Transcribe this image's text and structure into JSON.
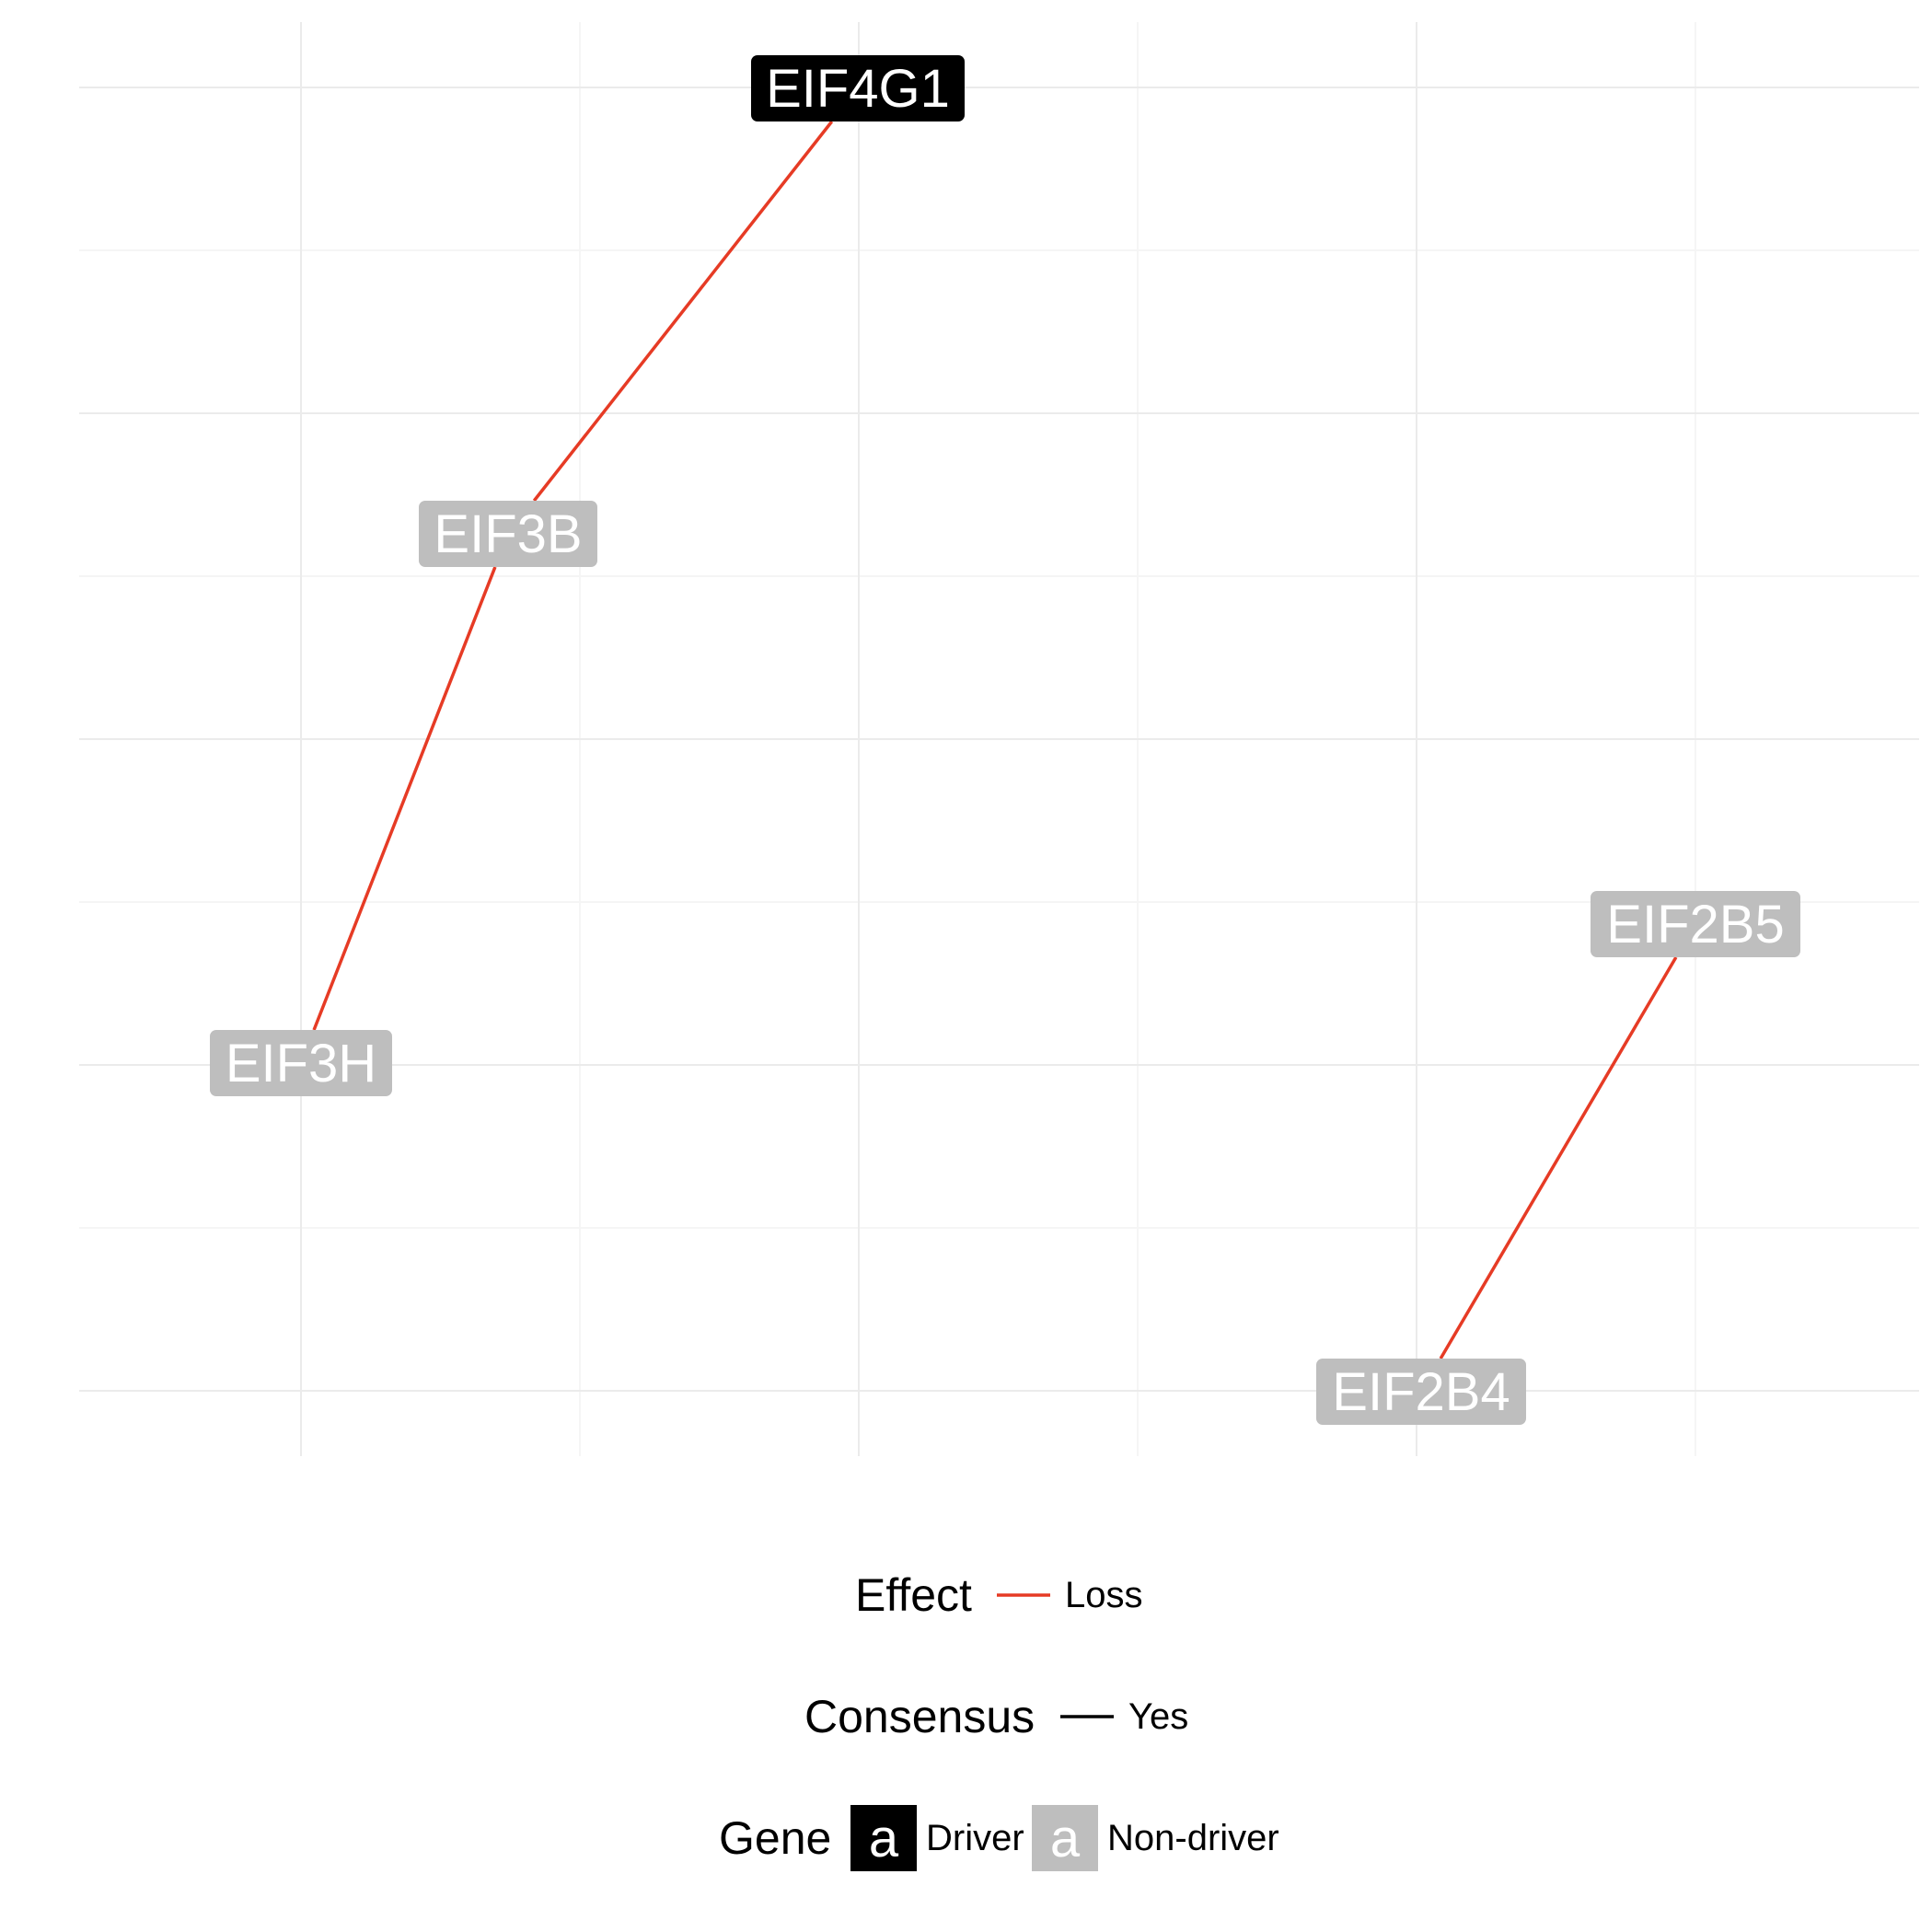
{
  "graph": {
    "nodes": [
      {
        "id": "EIF4G1",
        "label": "EIF4G1",
        "type": "Driver"
      },
      {
        "id": "EIF3B",
        "label": "EIF3B",
        "type": "Non-driver"
      },
      {
        "id": "EIF3H",
        "label": "EIF3H",
        "type": "Non-driver"
      },
      {
        "id": "EIF2B5",
        "label": "EIF2B5",
        "type": "Non-driver"
      },
      {
        "id": "EIF2B4",
        "label": "EIF2B4",
        "type": "Non-driver"
      }
    ],
    "edges": [
      {
        "from": "EIF4G1",
        "to": "EIF3B",
        "effect": "Loss",
        "consensus": "Yes"
      },
      {
        "from": "EIF3B",
        "to": "EIF3H",
        "effect": "Loss",
        "consensus": "Yes"
      },
      {
        "from": "EIF2B5",
        "to": "EIF2B4",
        "effect": "Loss",
        "consensus": "Yes"
      }
    ]
  },
  "colors": {
    "driver": "#000000",
    "non_driver": "#bebebe",
    "loss": "#e63b25",
    "consensus": "#000000",
    "grid_major": "#ebebeb",
    "grid_minor": "#f5f5f5",
    "node_text": "#ffffff"
  },
  "legend": {
    "effect": {
      "title": "Effect",
      "items": [
        "Loss"
      ]
    },
    "consensus": {
      "title": "Consensus",
      "items": [
        "Yes"
      ]
    },
    "gene": {
      "title": "Gene",
      "glyph": "a",
      "items": [
        "Driver",
        "Non-driver"
      ]
    }
  }
}
